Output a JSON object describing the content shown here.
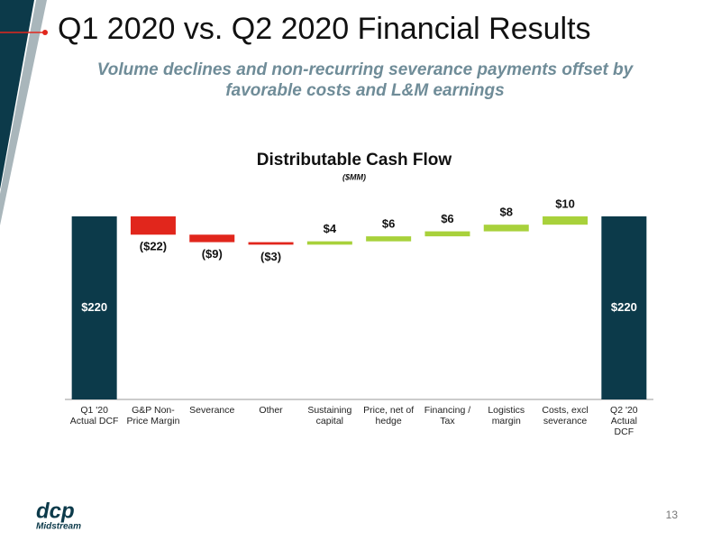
{
  "header": {
    "title": "Q1 2020 vs. Q2 2020 Financial Results",
    "subtitle": "Volume declines and non-recurring severance payments offset by favorable costs and L&M earnings"
  },
  "chart_data": {
    "type": "waterfall",
    "title": "Distributable Cash Flow",
    "subtitle": "($MM)",
    "categories": [
      "Q1 '20 Actual DCF",
      "G&P Non-Price Margin",
      "Severance",
      "Other",
      "Sustaining capital",
      "Price, net of hedge",
      "Financing / Tax",
      "Logistics margin",
      "Costs, excl severance",
      "Q2 '20 Actual DCF"
    ],
    "values": [
      220,
      -22,
      -9,
      -3,
      4,
      6,
      6,
      8,
      10,
      220
    ],
    "value_labels": [
      "$220",
      "($22)",
      "($9)",
      "($3)",
      "$4",
      "$6",
      "$6",
      "$8",
      "$10",
      "$220"
    ],
    "totals": [
      0,
      9
    ],
    "colors": {
      "total": "#0c3a4a",
      "increase": "#a8d13b",
      "decrease": "#e1261c"
    },
    "ylim": [
      0,
      240
    ]
  },
  "footer": {
    "logo": "dcp",
    "logo_tagline": "Midstream",
    "page_number": "13"
  }
}
